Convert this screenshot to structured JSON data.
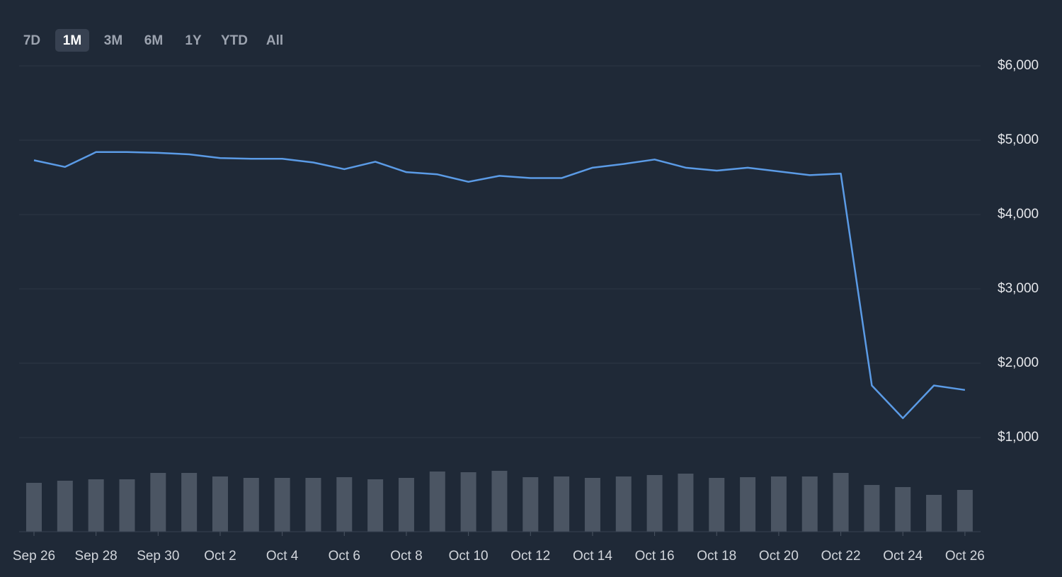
{
  "controls": {
    "ranges": [
      "7D",
      "1M",
      "3M",
      "6M",
      "1Y",
      "YTD",
      "All"
    ],
    "active": 1
  },
  "chart_data": {
    "type": "line",
    "categories": [
      "Sep 26",
      null,
      "Sep 28",
      null,
      "Sep 30",
      null,
      "Oct 2",
      null,
      "Oct 4",
      null,
      "Oct 6",
      null,
      "Oct 8",
      null,
      "Oct 10",
      null,
      "Oct 12",
      null,
      "Oct 14",
      null,
      "Oct 16",
      null,
      "Oct 18",
      null,
      "Oct 20",
      null,
      "Oct 22",
      null,
      "Oct 24",
      null,
      "Oct 26"
    ],
    "values": [
      4730,
      4640,
      4840,
      4840,
      4830,
      4810,
      4760,
      4750,
      4750,
      4700,
      4610,
      4710,
      4570,
      4540,
      4440,
      4520,
      4490,
      4490,
      4630,
      4680,
      4740,
      4630,
      4590,
      4630,
      4580,
      4530,
      4550,
      1700,
      1260,
      1700,
      1640
    ],
    "color": "#5b9be6",
    "ylim": [
      1000,
      6000
    ],
    "yticks": [
      {
        "value": 1000,
        "label": "$1,000"
      },
      {
        "value": 2000,
        "label": "$2,000"
      },
      {
        "value": 3000,
        "label": "$3,000"
      },
      {
        "value": 4000,
        "label": "$4,000"
      },
      {
        "value": 5000,
        "label": "$5,000"
      },
      {
        "value": 6000,
        "label": "$6,000"
      }
    ],
    "grid": true,
    "volume": {
      "type": "bar",
      "values": [
        69,
        72,
        74,
        74,
        83,
        83,
        78,
        76,
        76,
        76,
        77,
        74,
        76,
        85,
        84,
        86,
        77,
        78,
        76,
        78,
        80,
        82,
        76,
        77,
        78,
        78,
        83,
        66,
        63,
        52,
        59
      ],
      "color": "#4b5563"
    }
  }
}
